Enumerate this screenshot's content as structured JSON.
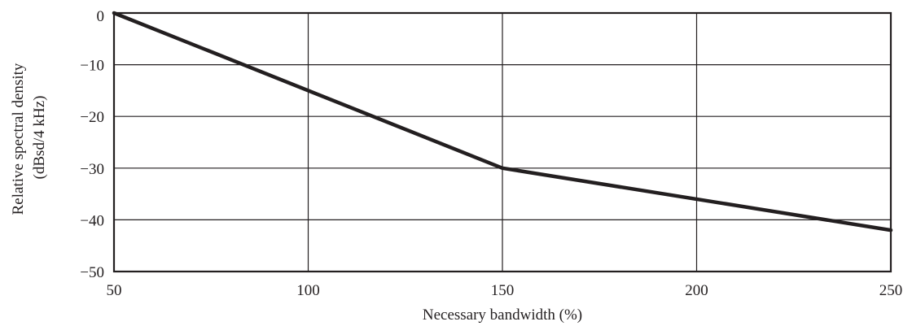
{
  "chart_data": {
    "type": "line",
    "title": "",
    "xlabel": "Necessary bandwidth (%)",
    "ylabel_line1": "Relative spectral density",
    "ylabel_line2": "(dBsd/4 kHz)",
    "xlim": [
      50,
      250
    ],
    "ylim": [
      -50,
      0
    ],
    "xticks": [
      50,
      100,
      150,
      200,
      250
    ],
    "yticks": [
      0,
      -10,
      -20,
      -30,
      -40,
      -50
    ],
    "xtick_labels": [
      "50",
      "100",
      "150",
      "200",
      "250"
    ],
    "ytick_labels": [
      "0",
      "−10",
      "−20",
      "−30",
      "−40",
      "−50"
    ],
    "grid": true,
    "legend": "none",
    "series": [
      {
        "color": "#231f20",
        "x": [
          50,
          150,
          250
        ],
        "y": [
          0,
          -30,
          -42
        ]
      }
    ]
  }
}
